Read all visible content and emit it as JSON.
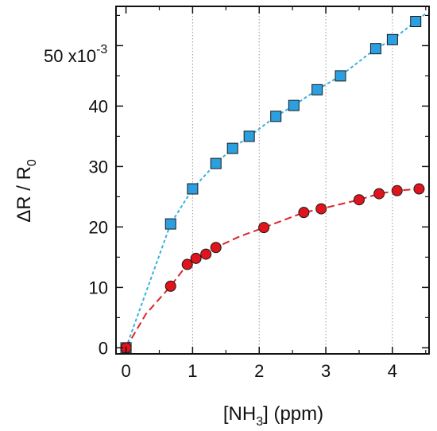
{
  "chart_data": {
    "type": "scatter",
    "title": "",
    "xlabel": {
      "prefix": "[NH",
      "sub": "3",
      "suffix": "] (ppm)"
    },
    "ylabel": {
      "prefix": "ΔR / R",
      "sub": "0"
    },
    "y_multiplier": {
      "text": "50 x10",
      "exp": "-3"
    },
    "xlim": [
      -0.15,
      4.55
    ],
    "ylim": [
      -1.0,
      56.5
    ],
    "x_ticks": [
      0,
      1,
      2,
      3,
      4
    ],
    "y_ticks": [
      0,
      10,
      20,
      30,
      40
    ],
    "grid": "vertical dotted gridlines at x ticks",
    "series": [
      {
        "marker": "square",
        "color": "#2b9fe0",
        "line_color": "#3ab0dd",
        "line_style": "dotted",
        "points": [
          [
            0.0,
            0.0
          ],
          [
            0.67,
            20.5
          ],
          [
            1.0,
            26.3
          ],
          [
            1.35,
            30.5
          ],
          [
            1.6,
            33.0
          ],
          [
            1.85,
            35.0
          ],
          [
            2.25,
            38.3
          ],
          [
            2.52,
            40.1
          ],
          [
            2.87,
            42.7
          ],
          [
            3.22,
            45.0
          ],
          [
            3.75,
            49.5
          ],
          [
            4.0,
            51.0
          ],
          [
            4.35,
            54.0
          ]
        ],
        "curve": [
          [
            0.0,
            0.0
          ],
          [
            0.67,
            20.5
          ],
          [
            1.0,
            26.3
          ],
          [
            1.35,
            30.5
          ],
          [
            1.6,
            33.0
          ],
          [
            1.85,
            35.0
          ],
          [
            2.25,
            38.3
          ],
          [
            2.52,
            40.1
          ],
          [
            2.87,
            42.7
          ],
          [
            3.22,
            45.0
          ],
          [
            3.75,
            49.5
          ],
          [
            4.0,
            51.0
          ],
          [
            4.35,
            54.0
          ],
          [
            4.5,
            55.3
          ]
        ]
      },
      {
        "marker": "circle",
        "color": "#e0141c",
        "line_color": "#d9252a",
        "line_style": "dashed",
        "points": [
          [
            0.0,
            0.0
          ],
          [
            0.67,
            10.2
          ],
          [
            0.92,
            13.8
          ],
          [
            1.05,
            14.8
          ],
          [
            1.2,
            15.5
          ],
          [
            1.35,
            16.6
          ],
          [
            2.07,
            19.9
          ],
          [
            2.67,
            22.4
          ],
          [
            2.93,
            23.0
          ],
          [
            3.5,
            24.5
          ],
          [
            3.8,
            25.5
          ],
          [
            4.07,
            26.0
          ],
          [
            4.4,
            26.3
          ]
        ],
        "curve": [
          [
            0.0,
            0.0
          ],
          [
            0.3,
            5.6
          ],
          [
            0.67,
            10.2
          ],
          [
            0.92,
            13.8
          ],
          [
            1.2,
            15.5
          ],
          [
            1.35,
            16.6
          ],
          [
            1.7,
            18.4
          ],
          [
            2.07,
            19.9
          ],
          [
            2.67,
            22.4
          ],
          [
            2.93,
            23.0
          ],
          [
            3.5,
            24.5
          ],
          [
            3.8,
            25.5
          ],
          [
            4.07,
            26.0
          ],
          [
            4.4,
            26.3
          ]
        ]
      }
    ]
  }
}
